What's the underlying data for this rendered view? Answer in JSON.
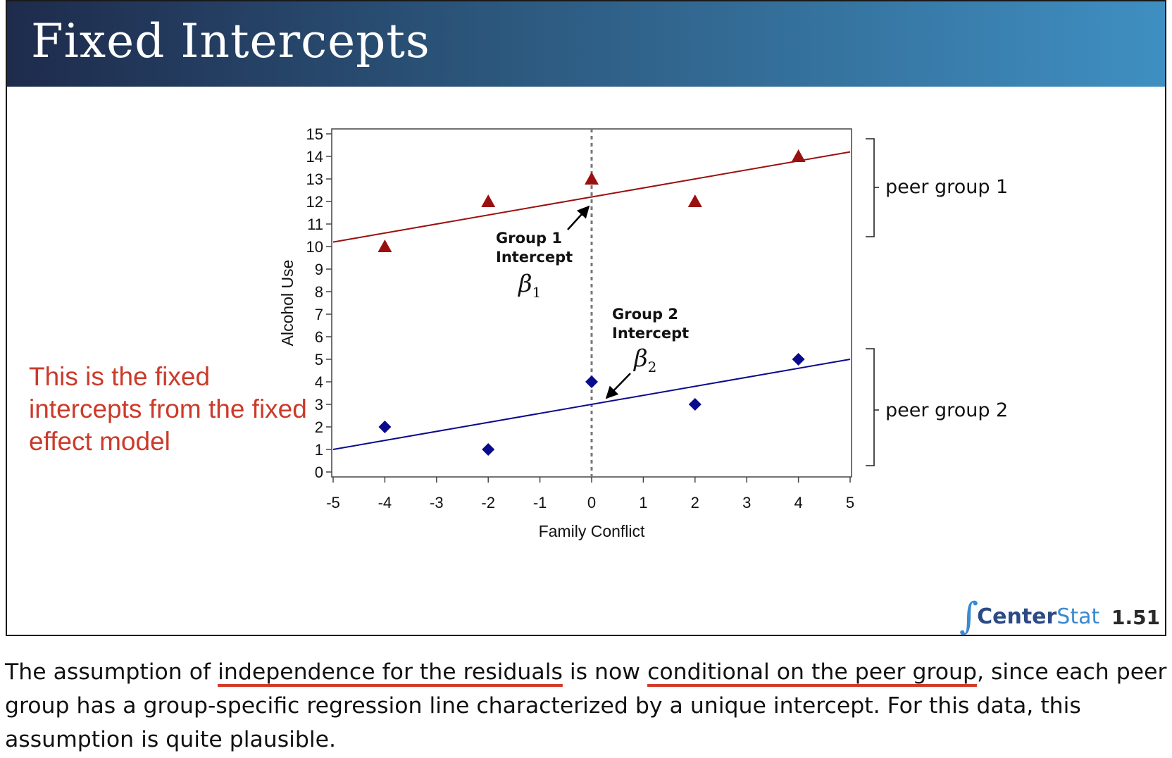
{
  "slide": {
    "title": "Fixed Intercepts",
    "side_note": "This is the fixed intercepts from the fixed effect model",
    "logo_center": "Center",
    "logo_stat": "Stat",
    "slide_number": "1.51"
  },
  "chart_data": {
    "type": "scatter",
    "title": "",
    "xlabel": "Family Conflict",
    "ylabel": "Alcohol Use",
    "xlim": [
      -5,
      5
    ],
    "ylim": [
      0,
      15
    ],
    "x_ticks": [
      "-5",
      "-4",
      "-3",
      "-2",
      "-1",
      "0",
      "1",
      "2",
      "3",
      "4",
      "5"
    ],
    "y_ticks": [
      "0",
      "1",
      "2",
      "3",
      "4",
      "5",
      "6",
      "7",
      "8",
      "9",
      "10",
      "11",
      "12",
      "13",
      "14",
      "15"
    ],
    "grid": false,
    "reference_line_x": 0,
    "series": [
      {
        "color": "#9a1010",
        "marker": "triangle",
        "x": [
          -4,
          -2,
          0,
          2,
          4
        ],
        "y": [
          10,
          12,
          13,
          12,
          14
        ],
        "fit_line": {
          "intercept": 12.2,
          "slope": 0.4
        }
      },
      {
        "color": "#0a0a8c",
        "marker": "diamond",
        "x": [
          -4,
          -2,
          0,
          2,
          4
        ],
        "y": [
          2,
          1,
          4,
          3,
          5
        ],
        "fit_line": {
          "intercept": 3.0,
          "slope": 0.4
        }
      }
    ],
    "annotations": {
      "group1_line1": "Group 1",
      "group1_line2": "Intercept",
      "group1_beta": "β",
      "group1_sub": "1",
      "group2_line1": "Group 2",
      "group2_line2": "Intercept",
      "group2_beta": "β",
      "group2_sub": "2"
    },
    "brackets": {
      "group1": "peer group 1",
      "group2": "peer group 2"
    }
  },
  "caption": {
    "p1": "The assumption of ",
    "u1": "independence for the residuals",
    "p2": " is now ",
    "u2": "conditional on the peer group",
    "p3": ", since each peer group has a group-specific regression line characterized by a unique intercept.  For this data, this assumption is quite plausible."
  }
}
